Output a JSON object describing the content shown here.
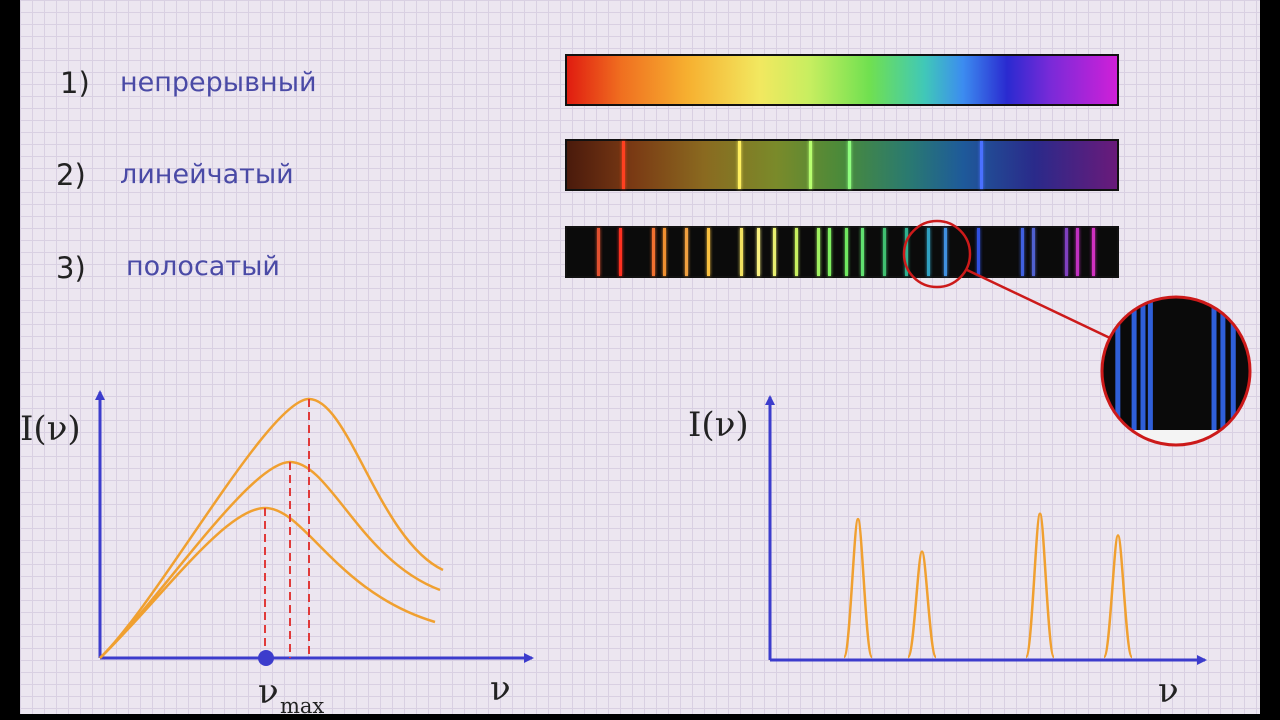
{
  "rows": [
    {
      "num": "1)",
      "label": "непрерывный"
    },
    {
      "num": "2)",
      "label": "линейчатый"
    },
    {
      "num": "3)",
      "label": "полосатый"
    }
  ],
  "line_spectrum": {
    "lines": [
      {
        "pos": 0.1,
        "color": "#ff4020"
      },
      {
        "pos": 0.31,
        "color": "#fff060"
      },
      {
        "pos": 0.44,
        "color": "#b8ff70"
      },
      {
        "pos": 0.51,
        "color": "#90ff80"
      },
      {
        "pos": 0.75,
        "color": "#4a70ff"
      }
    ]
  },
  "band_spectrum": {
    "lines": [
      {
        "pos": 0.055,
        "color": "#e05030"
      },
      {
        "pos": 0.095,
        "color": "#ff3020"
      },
      {
        "pos": 0.155,
        "color": "#f07030"
      },
      {
        "pos": 0.175,
        "color": "#f09030"
      },
      {
        "pos": 0.215,
        "color": "#f0a040"
      },
      {
        "pos": 0.255,
        "color": "#f8c040"
      },
      {
        "pos": 0.315,
        "color": "#f0e060"
      },
      {
        "pos": 0.345,
        "color": "#f8f080"
      },
      {
        "pos": 0.375,
        "color": "#e8f070"
      },
      {
        "pos": 0.415,
        "color": "#c8f060"
      },
      {
        "pos": 0.455,
        "color": "#a0f060"
      },
      {
        "pos": 0.475,
        "color": "#80f060"
      },
      {
        "pos": 0.505,
        "color": "#70e860"
      },
      {
        "pos": 0.535,
        "color": "#60e070"
      },
      {
        "pos": 0.575,
        "color": "#40c070"
      },
      {
        "pos": 0.615,
        "color": "#30b090"
      },
      {
        "pos": 0.655,
        "color": "#30a0c0"
      },
      {
        "pos": 0.685,
        "color": "#4090e0"
      },
      {
        "pos": 0.745,
        "color": "#3050e0"
      },
      {
        "pos": 0.825,
        "color": "#4060e0"
      },
      {
        "pos": 0.845,
        "color": "#5060d0"
      },
      {
        "pos": 0.905,
        "color": "#8040c0"
      },
      {
        "pos": 0.925,
        "color": "#c030c0"
      },
      {
        "pos": 0.955,
        "color": "#d030c0"
      }
    ]
  },
  "zoom_lines": [
    0.09,
    0.2,
    0.26,
    0.31,
    0.74,
    0.8,
    0.87
  ],
  "chart_left": {
    "ylabel": "I(ν)",
    "xlabel": "ν",
    "marker_label": "ν",
    "marker_sub": "max"
  },
  "chart_right": {
    "ylabel": "I(ν)",
    "xlabel": "ν",
    "peaks": [
      0.26,
      0.2,
      0.27,
      0.23
    ]
  },
  "colors": {
    "curve": "#f0a030",
    "axis": "#3c3ccc",
    "dash": "#e03a3a",
    "magnify": "#cc1a1a"
  }
}
